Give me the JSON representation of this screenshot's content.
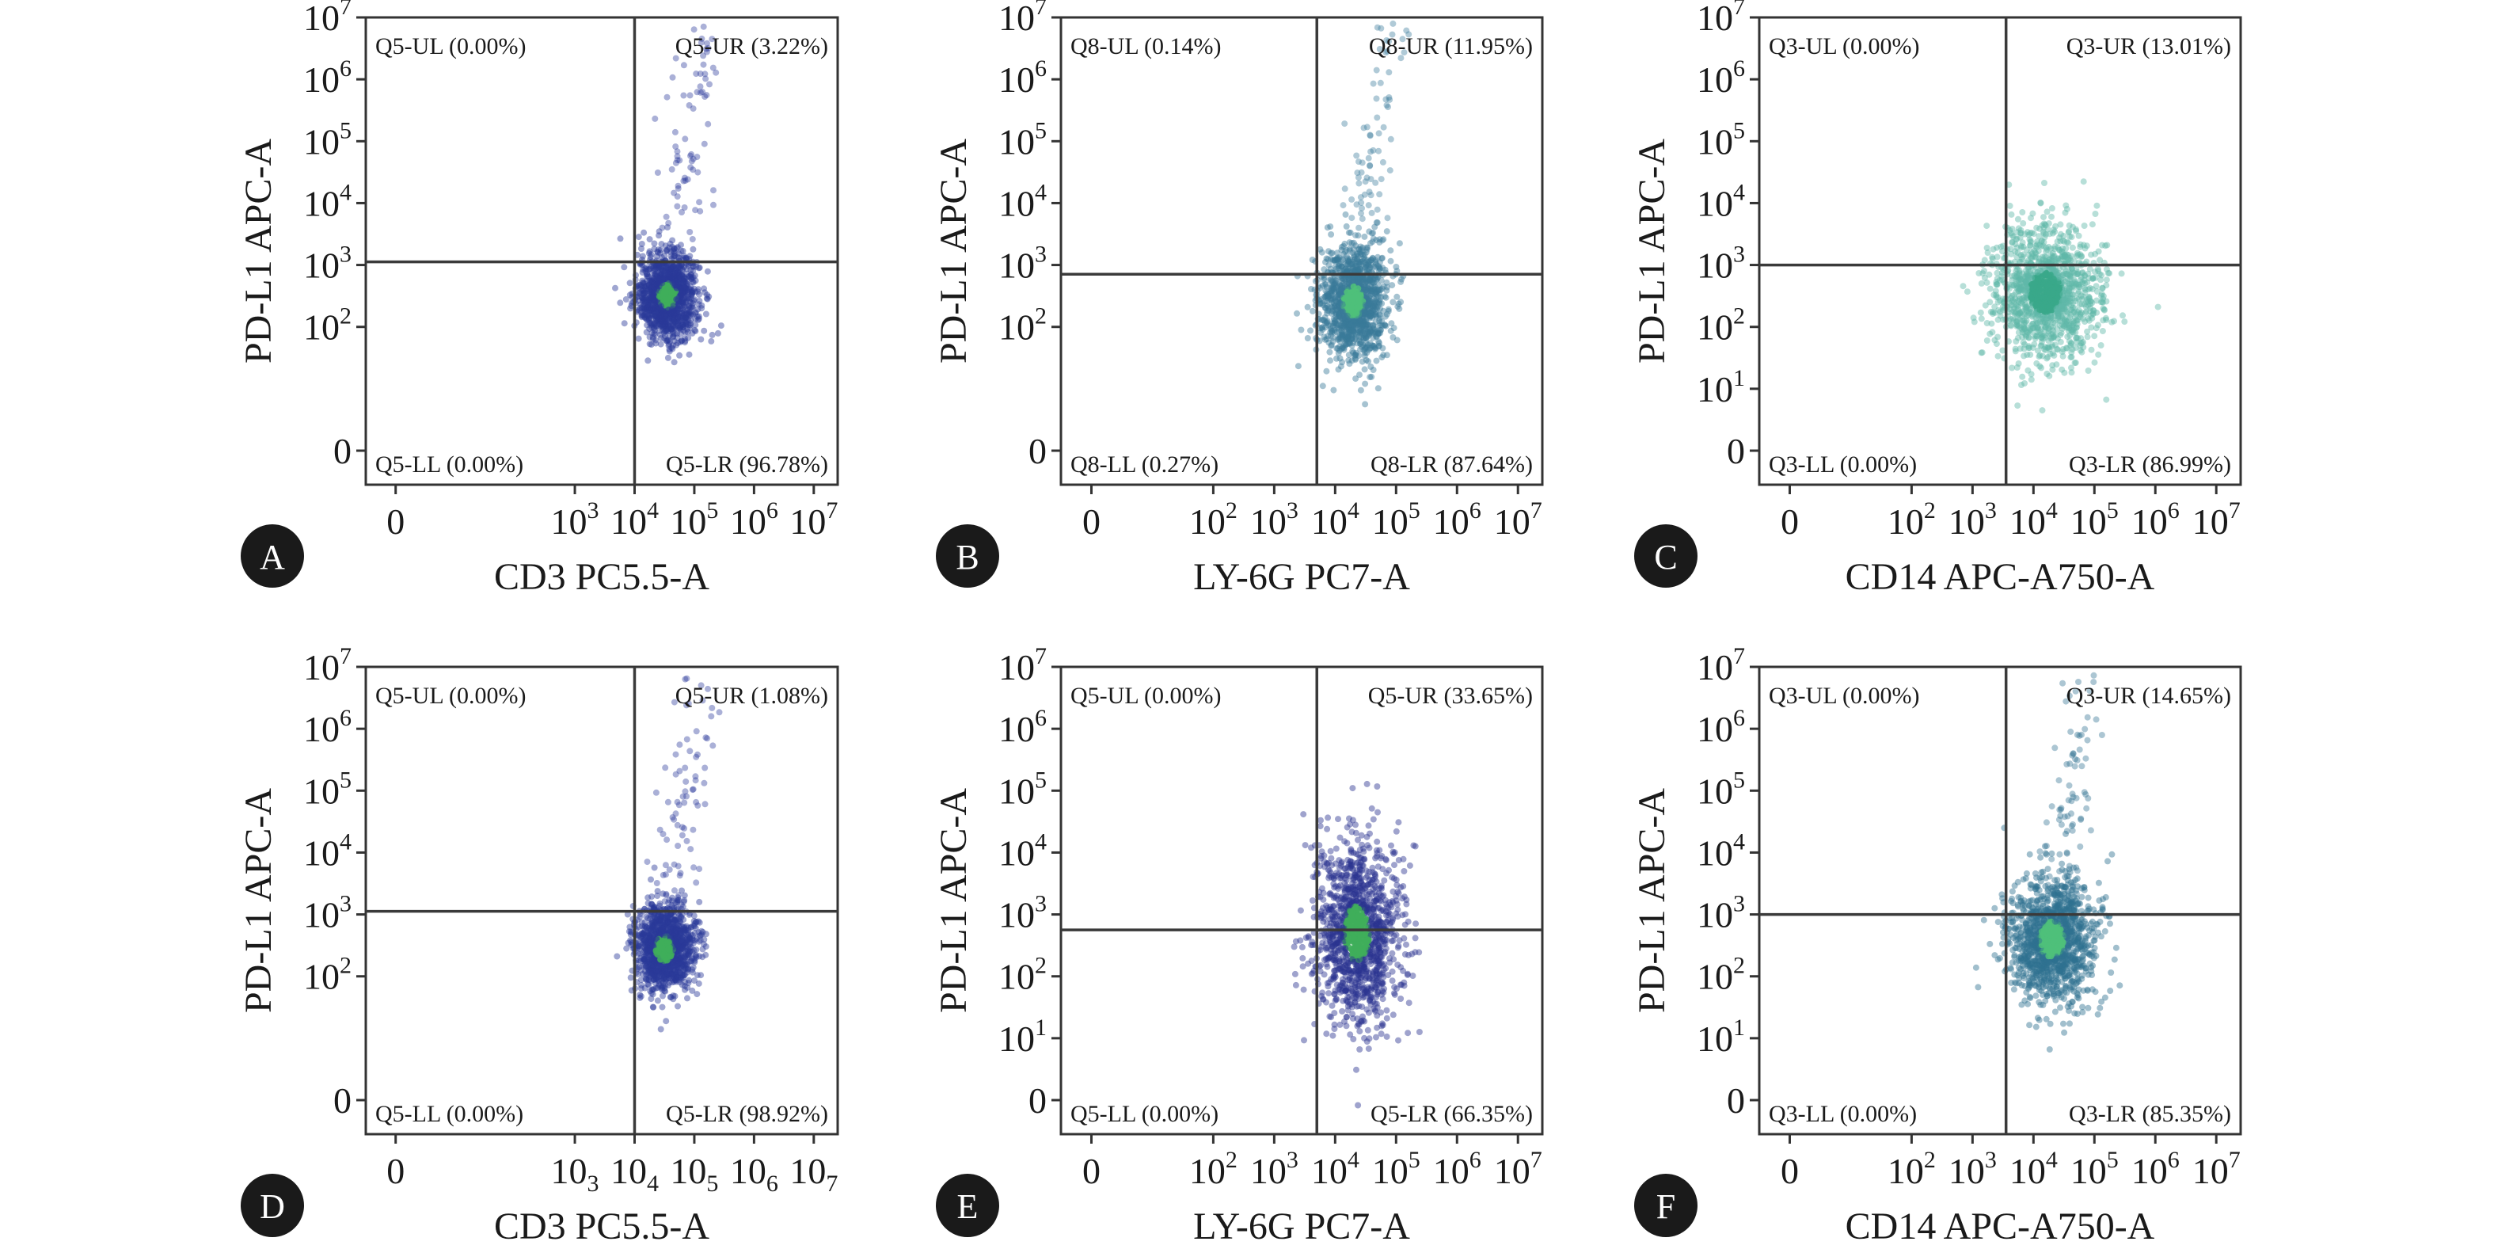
{
  "chart_data": [
    {
      "panel": "A",
      "type": "scatter",
      "xlabel": "CD3 PC5.5-A",
      "ylabel": "PD-L1 APC-A",
      "xticks": [
        {
          "v": 0,
          "base": "0",
          "sup": ""
        },
        {
          "v": 3,
          "base": "10",
          "sup": "3"
        },
        {
          "v": 4,
          "base": "10",
          "sup": "4"
        },
        {
          "v": 5,
          "base": "10",
          "sup": "5"
        },
        {
          "v": 6,
          "base": "10",
          "sup": "6"
        },
        {
          "v": 7,
          "base": "10",
          "sup": "7"
        }
      ],
      "yticks": [
        {
          "v": 0,
          "base": "0",
          "sup": ""
        },
        {
          "v": 2,
          "base": "10",
          "sup": "2"
        },
        {
          "v": 3,
          "base": "10",
          "sup": "3"
        },
        {
          "v": 4,
          "base": "10",
          "sup": "4"
        },
        {
          "v": 5,
          "base": "10",
          "sup": "5"
        },
        {
          "v": 6,
          "base": "10",
          "sup": "6"
        },
        {
          "v": 7,
          "base": "10",
          "sup": "7"
        }
      ],
      "gate": {
        "x": 4.0,
        "y": 3.05
      },
      "quadrants": {
        "UL": "Q5-UL (0.00%)",
        "UR": "Q5-UR (3.22%)",
        "LL": "Q5-LL (0.00%)",
        "LR": "Q5-LR (96.78%)"
      },
      "population": {
        "cx": 4.55,
        "cy": 2.5,
        "sx": 0.25,
        "sy": 0.35,
        "color": "#2a3a9a",
        "core": "#3fae5a",
        "tail": true
      }
    },
    {
      "panel": "B",
      "type": "scatter",
      "xlabel": "LY-6G PC7-A",
      "ylabel": "PD-L1 APC-A",
      "xticks": [
        {
          "v": 0,
          "base": "0",
          "sup": ""
        },
        {
          "v": 2,
          "base": "10",
          "sup": "2"
        },
        {
          "v": 3,
          "base": "10",
          "sup": "3"
        },
        {
          "v": 4,
          "base": "10",
          "sup": "4"
        },
        {
          "v": 5,
          "base": "10",
          "sup": "5"
        },
        {
          "v": 6,
          "base": "10",
          "sup": "6"
        },
        {
          "v": 7,
          "base": "10",
          "sup": "7"
        }
      ],
      "yticks": [
        {
          "v": 0,
          "base": "0",
          "sup": ""
        },
        {
          "v": 2,
          "base": "10",
          "sup": "2"
        },
        {
          "v": 3,
          "base": "10",
          "sup": "3"
        },
        {
          "v": 4,
          "base": "10",
          "sup": "4"
        },
        {
          "v": 5,
          "base": "10",
          "sup": "5"
        },
        {
          "v": 6,
          "base": "10",
          "sup": "6"
        },
        {
          "v": 7,
          "base": "10",
          "sup": "7"
        }
      ],
      "gate": {
        "x": 3.7,
        "y": 2.85
      },
      "quadrants": {
        "UL": "Q8-UL (0.14%)",
        "UR": "Q8-UR (11.95%)",
        "LL": "Q8-LL (0.27%)",
        "LR": "Q8-LR (87.64%)"
      },
      "population": {
        "cx": 4.3,
        "cy": 2.4,
        "sx": 0.28,
        "sy": 0.45,
        "color": "#3a7a9a",
        "core": "#4fbf7a",
        "tail": true
      }
    },
    {
      "panel": "C",
      "type": "scatter",
      "xlabel": "CD14 APC-A750-A",
      "ylabel": "PD-L1 APC-A",
      "xticks": [
        {
          "v": 0,
          "base": "0",
          "sup": ""
        },
        {
          "v": 2,
          "base": "10",
          "sup": "2"
        },
        {
          "v": 3,
          "base": "10",
          "sup": "3"
        },
        {
          "v": 4,
          "base": "10",
          "sup": "4"
        },
        {
          "v": 5,
          "base": "10",
          "sup": "5"
        },
        {
          "v": 6,
          "base": "10",
          "sup": "6"
        },
        {
          "v": 7,
          "base": "10",
          "sup": "7"
        }
      ],
      "yticks": [
        {
          "v": 0,
          "base": "0",
          "sup": ""
        },
        {
          "v": 1,
          "base": "10",
          "sup": "1"
        },
        {
          "v": 2,
          "base": "10",
          "sup": "2"
        },
        {
          "v": 3,
          "base": "10",
          "sup": "3"
        },
        {
          "v": 4,
          "base": "10",
          "sup": "4"
        },
        {
          "v": 5,
          "base": "10",
          "sup": "5"
        },
        {
          "v": 6,
          "base": "10",
          "sup": "6"
        },
        {
          "v": 7,
          "base": "10",
          "sup": "7"
        }
      ],
      "gate": {
        "x": 3.55,
        "y": 3.0
      },
      "quadrants": {
        "UL": "Q3-UL (0.00%)",
        "UR": "Q3-UR (13.01%)",
        "LL": "Q3-LL (0.00%)",
        "LR": "Q3-LR (86.99%)"
      },
      "population": {
        "cx": 4.2,
        "cy": 2.55,
        "sx": 0.45,
        "sy": 0.55,
        "color": "#5fb8a8",
        "core": "#3aa88a",
        "tail": false
      }
    },
    {
      "panel": "D",
      "type": "scatter",
      "xlabel": "CD3 PC5.5-A",
      "ylabel": "PD-L1 APC-A",
      "xticks": [
        {
          "v": 0,
          "base": "0",
          "sup": "",
          "sub": ""
        },
        {
          "v": 3,
          "base": "10",
          "sup": "",
          "sub": "3"
        },
        {
          "v": 4,
          "base": "10",
          "sup": "",
          "sub": "4"
        },
        {
          "v": 5,
          "base": "10",
          "sup": "",
          "sub": "5"
        },
        {
          "v": 6,
          "base": "10",
          "sup": "",
          "sub": "6"
        },
        {
          "v": 7,
          "base": "10",
          "sup": "",
          "sub": "7"
        }
      ],
      "yticks": [
        {
          "v": 0,
          "base": "0",
          "sup": ""
        },
        {
          "v": 2,
          "base": "10",
          "sup": "2"
        },
        {
          "v": 3,
          "base": "10",
          "sup": "3"
        },
        {
          "v": 4,
          "base": "10",
          "sup": "4"
        },
        {
          "v": 5,
          "base": "10",
          "sup": "5"
        },
        {
          "v": 6,
          "base": "10",
          "sup": "6"
        },
        {
          "v": 7,
          "base": "10",
          "sup": "7"
        }
      ],
      "gate": {
        "x": 4.0,
        "y": 3.05
      },
      "quadrants": {
        "UL": "Q5-UL (0.00%)",
        "UR": "Q5-UR (1.08%)",
        "LL": "Q5-LL (0.00%)",
        "LR": "Q5-LR (98.92%)"
      },
      "population": {
        "cx": 4.5,
        "cy": 2.45,
        "sx": 0.25,
        "sy": 0.35,
        "color": "#2a3a9a",
        "core": "#3fae5a",
        "tail": true
      }
    },
    {
      "panel": "E",
      "type": "scatter",
      "xlabel": "LY-6G PC7-A",
      "ylabel": "PD-L1 APC-A",
      "xticks": [
        {
          "v": 0,
          "base": "0",
          "sup": ""
        },
        {
          "v": 2,
          "base": "10",
          "sup": "2"
        },
        {
          "v": 3,
          "base": "10",
          "sup": "3"
        },
        {
          "v": 4,
          "base": "10",
          "sup": "4"
        },
        {
          "v": 5,
          "base": "10",
          "sup": "5"
        },
        {
          "v": 6,
          "base": "10",
          "sup": "6"
        },
        {
          "v": 7,
          "base": "10",
          "sup": "7"
        }
      ],
      "yticks": [
        {
          "v": 0,
          "base": "0",
          "sup": ""
        },
        {
          "v": 1,
          "base": "10",
          "sup": "1"
        },
        {
          "v": 2,
          "base": "10",
          "sup": "2"
        },
        {
          "v": 3,
          "base": "10",
          "sup": "3"
        },
        {
          "v": 4,
          "base": "10",
          "sup": "4"
        },
        {
          "v": 5,
          "base": "10",
          "sup": "5"
        },
        {
          "v": 6,
          "base": "10",
          "sup": "6"
        },
        {
          "v": 7,
          "base": "10",
          "sup": "7"
        }
      ],
      "gate": {
        "x": 3.7,
        "y": 2.75
      },
      "quadrants": {
        "UL": "Q5-UL (0.00%)",
        "UR": "Q5-UR (33.65%)",
        "LL": "Q5-LL (0.00%)",
        "LR": "Q5-LR (66.35%)"
      },
      "population": {
        "cx": 4.35,
        "cy": 2.7,
        "sx": 0.35,
        "sy": 0.75,
        "color": "#2a3290",
        "core": "#3fae5a",
        "tail": false
      }
    },
    {
      "panel": "F",
      "type": "scatter",
      "xlabel": "CD14 APC-A750-A",
      "ylabel": "PD-L1 APC-A",
      "xticks": [
        {
          "v": 0,
          "base": "0",
          "sup": ""
        },
        {
          "v": 2,
          "base": "10",
          "sup": "2"
        },
        {
          "v": 3,
          "base": "10",
          "sup": "3"
        },
        {
          "v": 4,
          "base": "10",
          "sup": "4"
        },
        {
          "v": 5,
          "base": "10",
          "sup": "5"
        },
        {
          "v": 6,
          "base": "10",
          "sup": "6"
        },
        {
          "v": 7,
          "base": "10",
          "sup": "7"
        }
      ],
      "yticks": [
        {
          "v": 0,
          "base": "0",
          "sup": ""
        },
        {
          "v": 1,
          "base": "10",
          "sup": "1"
        },
        {
          "v": 2,
          "base": "10",
          "sup": "2"
        },
        {
          "v": 3,
          "base": "10",
          "sup": "3"
        },
        {
          "v": 4,
          "base": "10",
          "sup": "4"
        },
        {
          "v": 5,
          "base": "10",
          "sup": "5"
        },
        {
          "v": 6,
          "base": "10",
          "sup": "6"
        },
        {
          "v": 7,
          "base": "10",
          "sup": "7"
        }
      ],
      "gate": {
        "x": 3.55,
        "y": 3.0
      },
      "quadrants": {
        "UL": "Q3-UL (0.00%)",
        "UR": "Q3-UR (14.65%)",
        "LL": "Q3-LL (0.00%)",
        "LR": "Q3-LR (85.35%)"
      },
      "population": {
        "cx": 4.3,
        "cy": 2.6,
        "sx": 0.35,
        "sy": 0.5,
        "color": "#2f7090",
        "core": "#4fbf7a",
        "tail": true
      }
    }
  ]
}
